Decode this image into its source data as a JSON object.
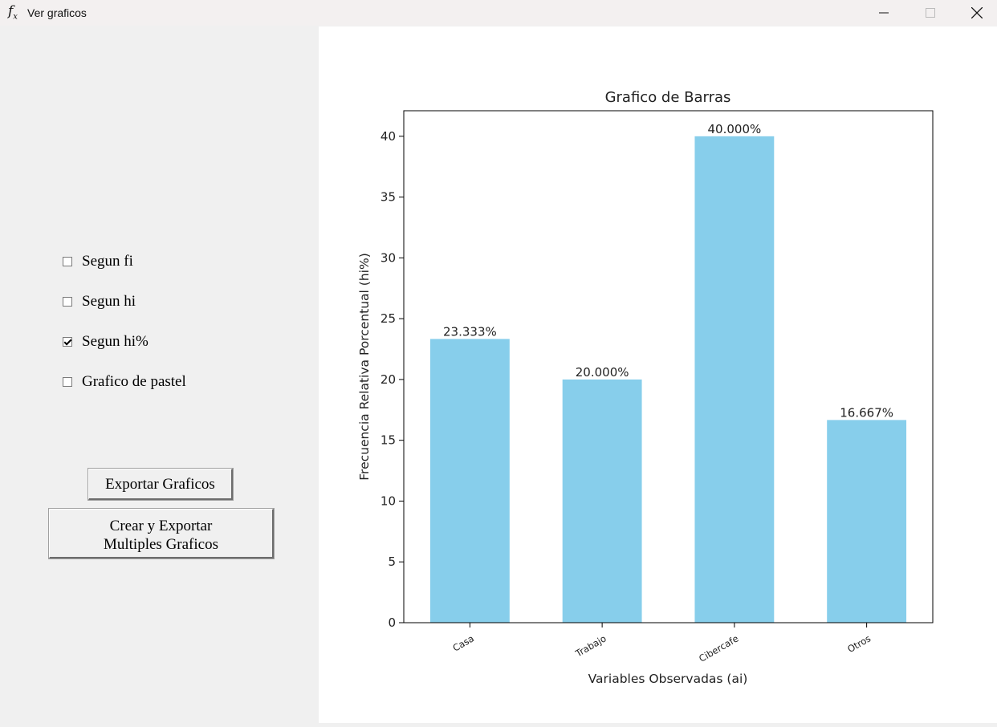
{
  "window": {
    "icon": "function-fx-icon",
    "icon_main": "f",
    "icon_sub": "x",
    "title": "Ver graficos"
  },
  "options": [
    {
      "label": "Segun fi",
      "checked": false
    },
    {
      "label": "Segun hi",
      "checked": false
    },
    {
      "label": "Segun hi%",
      "checked": true
    },
    {
      "label": "Grafico de pastel",
      "checked": false
    }
  ],
  "buttons": {
    "export_label": "Exportar Graficos",
    "multi_line1": "Crear y Exportar",
    "multi_line2": "Multiples Graficos"
  },
  "chart_data": {
    "type": "bar",
    "title": "Grafico de Barras",
    "xlabel": "Variables Observadas (ai)",
    "ylabel": "Frecuencia Relativa Porcentual (hi%)",
    "categories": [
      "Casa",
      "Trabajo",
      "Cibercafe",
      "Otros"
    ],
    "values": [
      23.333,
      20.0,
      40.0,
      16.667
    ],
    "value_labels": [
      "23.333%",
      "20.000%",
      "40.000%",
      "16.667%"
    ],
    "ylim": [
      0,
      42.1
    ],
    "yticks": [
      0,
      5,
      10,
      15,
      20,
      25,
      30,
      35,
      40
    ],
    "bar_color": "#87ceeb",
    "grid": false
  }
}
